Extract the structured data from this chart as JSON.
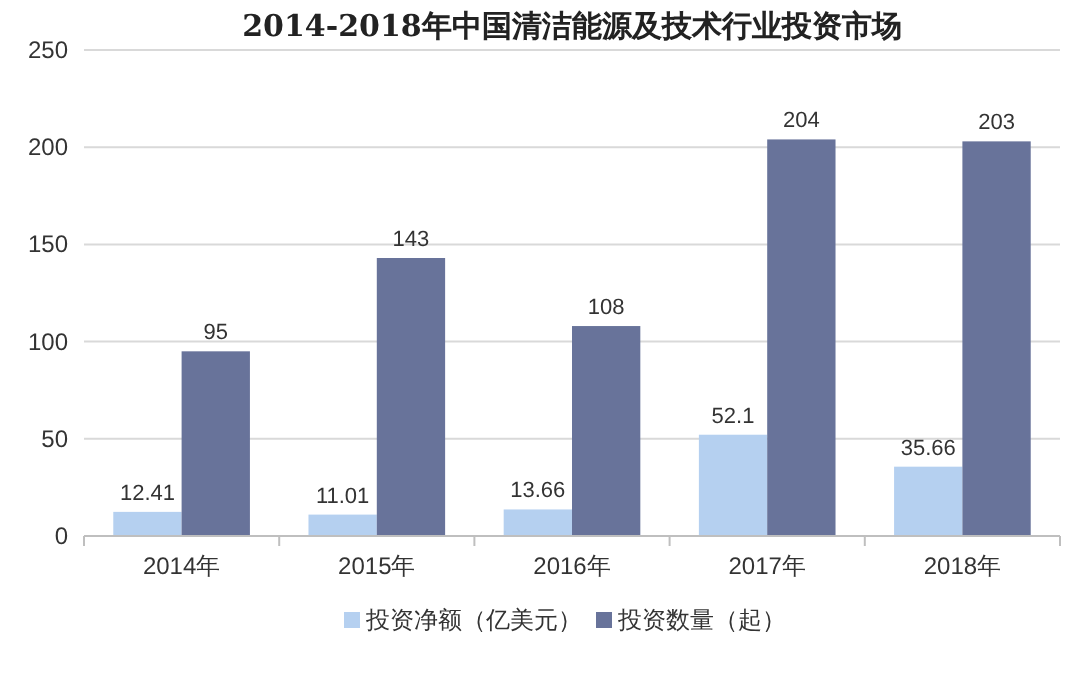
{
  "chart_data": {
    "type": "bar",
    "title": "2014-2018年中国清洁能源及技术行业投资市场",
    "categories": [
      "2014年",
      "2015年",
      "2016年",
      "2017年",
      "2018年"
    ],
    "series": [
      {
        "name": "投资净额（亿美元）",
        "color": "#b5d0f0",
        "values": [
          12.41,
          11.01,
          13.66,
          52.1,
          35.66
        ]
      },
      {
        "name": "投资数量（起）",
        "color": "#68739a",
        "values": [
          95,
          143,
          108,
          204,
          203
        ]
      }
    ],
    "ylim": [
      0,
      250
    ],
    "yticks": [
      0,
      50,
      100,
      150,
      200,
      250
    ],
    "grid": "y",
    "legend": "bottom",
    "data_labels": true
  }
}
